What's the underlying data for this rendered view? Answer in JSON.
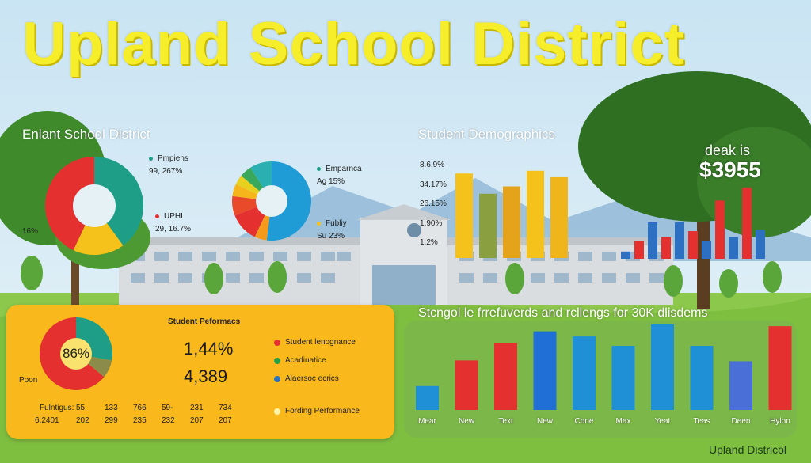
{
  "title": "Upland School District",
  "footer": "Upland Districol",
  "top_left": {
    "heading": "Enlant School District",
    "legend": [
      {
        "label": "Pmpiens",
        "value": "99, 267%"
      },
      {
        "label": "UPHI",
        "value": "29, 16.7%"
      }
    ],
    "side_label": "16%"
  },
  "donut_center": {
    "legend": [
      {
        "label": "Emparnca",
        "value": "Ag 15%"
      },
      {
        "label": "Fubliy",
        "value": "Su 23%"
      }
    ]
  },
  "demographics": {
    "heading": "Student Demographics",
    "ticks": [
      "8.6.9%",
      "34.17%",
      "26.15%",
      "1.90%",
      "1.2%"
    ]
  },
  "callout": {
    "line1": "deak is",
    "line2": "$3955"
  },
  "performance": {
    "heading": "Student Peformacs",
    "center_value": "86%",
    "side_label": "Poon",
    "num1": "1,44%",
    "num2": "4,389",
    "legend": [
      {
        "label": "Student lenognance",
        "color": "#e53030"
      },
      {
        "label": "Acadiuatice",
        "color": "#27a04a"
      },
      {
        "label": "Alaersoc ecrics",
        "color": "#2d6fc0"
      },
      {
        "label": "Fording Performance",
        "color": "#fff4a8"
      }
    ],
    "row1_label": "Fulntigus:",
    "row1": [
      "55",
      "133",
      "766",
      "59-",
      "231",
      "734"
    ],
    "row2_label": "6,2401",
    "row2": [
      "202",
      "299",
      "235",
      "232",
      "207",
      "207"
    ]
  },
  "bottom_heading": "Stcngol le frrefuverds and rcllengs for 30K dlisdems",
  "colors": {
    "red": "#e53030",
    "green": "#1e9e86",
    "yellow": "#f5c21b",
    "blue": "#1f8fd6",
    "orange": "#f59a1b",
    "panel": "#f9b91c"
  },
  "chart_data": [
    {
      "type": "pie",
      "id": "left-donut",
      "slices": [
        {
          "name": "Pmpiens",
          "value": 40,
          "color": "#1e9e86"
        },
        {
          "name": "UPHI",
          "value": 17,
          "color": "#f5c21b"
        },
        {
          "name": "Red",
          "value": 43,
          "color": "#e53030"
        }
      ]
    },
    {
      "type": "pie",
      "id": "center-donut",
      "slices": [
        {
          "name": "Blue",
          "value": 52,
          "color": "#1f9bd6"
        },
        {
          "name": "Orange",
          "value": 5,
          "color": "#f59a1b"
        },
        {
          "name": "Red",
          "value": 12,
          "color": "#e53030"
        },
        {
          "name": "Red2",
          "value": 8,
          "color": "#e84a2a"
        },
        {
          "name": "Orange2",
          "value": 5,
          "color": "#f5b51b"
        },
        {
          "name": "Yellow",
          "value": 4,
          "color": "#e8d01e"
        },
        {
          "name": "Green",
          "value": 5,
          "color": "#3aa85a"
        },
        {
          "name": "Teal",
          "value": 9,
          "color": "#2ab0b0"
        }
      ]
    },
    {
      "type": "pie",
      "id": "performance-donut",
      "slices": [
        {
          "name": "Teal",
          "value": 28,
          "color": "#1e9e86"
        },
        {
          "name": "Olive",
          "value": 8,
          "color": "#8c8c4a"
        },
        {
          "name": "Red",
          "value": 64,
          "color": "#e53030"
        }
      ]
    },
    {
      "type": "bar",
      "id": "demographics-bars",
      "ylim": [
        0,
        100
      ],
      "values": [
        92,
        70,
        78,
        95,
        88
      ],
      "colors": [
        "#f5c21b",
        "#8aa040",
        "#e5a21b",
        "#f5c21b",
        "#f0b51b"
      ]
    },
    {
      "type": "bar",
      "id": "right-bars",
      "ylim": [
        0,
        100
      ],
      "values": [
        10,
        25,
        50,
        30,
        50,
        38,
        25,
        80,
        30,
        98,
        40
      ],
      "colors": [
        "#2d6fc0",
        "#e53030",
        "#2d6fc0",
        "#e53030",
        "#2d6fc0",
        "#e53030",
        "#2d6fc0",
        "#e53030",
        "#2d6fc0",
        "#e53030",
        "#2d6fc0"
      ]
    },
    {
      "type": "bar",
      "id": "bottom-bars",
      "categories": [
        "Mear",
        "New",
        "Text",
        "New",
        "Cone",
        "Max",
        "Yeat",
        "Teas",
        "Deen",
        "Hylon"
      ],
      "values": [
        28,
        58,
        78,
        92,
        86,
        75,
        100,
        75,
        57,
        98
      ],
      "colors": [
        "#1f8fd6",
        "#e53030",
        "#e53030",
        "#1f6fd6",
        "#1f8fd6",
        "#1f8fd6",
        "#1f8fd6",
        "#1f8fd6",
        "#4a6fd6",
        "#e53030"
      ],
      "ylim": [
        0,
        100
      ]
    }
  ]
}
